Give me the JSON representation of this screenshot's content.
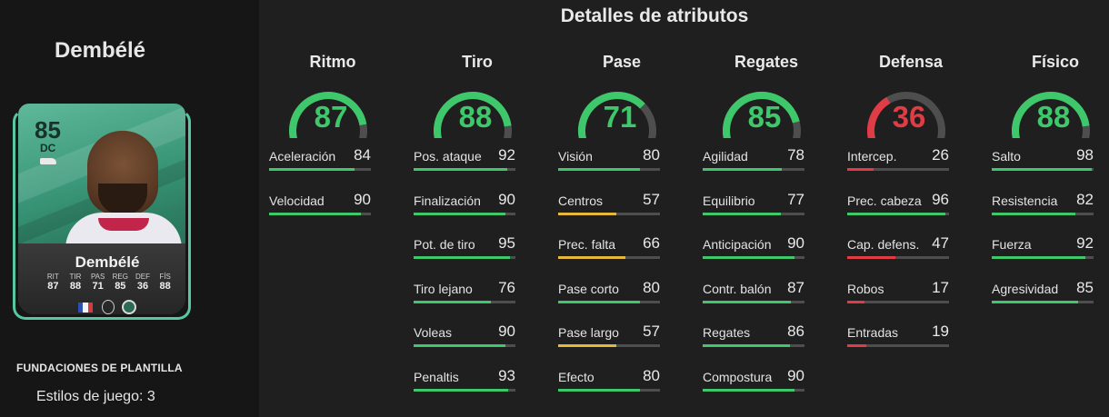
{
  "header": {
    "title": "Detalles de atributos"
  },
  "player": {
    "name": "Dembélé",
    "card": {
      "rating": "85",
      "position": "DC",
      "name": "Dembélé",
      "stats": [
        {
          "label": "RIT",
          "value": "87"
        },
        {
          "label": "TIR",
          "value": "88"
        },
        {
          "label": "PAS",
          "value": "71"
        },
        {
          "label": "REG",
          "value": "85"
        },
        {
          "label": "DEF",
          "value": "36"
        },
        {
          "label": "FÍS",
          "value": "88"
        }
      ],
      "accent_color": "#57c7a4"
    },
    "edition": "FUNDACIONES DE PLANTILLA",
    "play_styles": "Estilos de juego: 3"
  },
  "colors": {
    "high": "#3ec86b",
    "mid": "#e5b83b",
    "low": "#e03c46",
    "track": "#4e4e4e"
  },
  "categories": [
    {
      "name": "Ritmo",
      "value": "87",
      "rating": "high",
      "attributes": [
        {
          "name": "Aceleración",
          "value": "84",
          "rating": "high"
        },
        {
          "name": "Velocidad",
          "value": "90",
          "rating": "high"
        }
      ]
    },
    {
      "name": "Tiro",
      "value": "88",
      "rating": "high",
      "attributes": [
        {
          "name": "Pos. ataque",
          "value": "92",
          "rating": "high"
        },
        {
          "name": "Finalización",
          "value": "90",
          "rating": "high"
        },
        {
          "name": "Pot. de tiro",
          "value": "95",
          "rating": "high"
        },
        {
          "name": "Tiro lejano",
          "value": "76",
          "rating": "high"
        },
        {
          "name": "Voleas",
          "value": "90",
          "rating": "high"
        },
        {
          "name": "Penaltis",
          "value": "93",
          "rating": "high"
        }
      ]
    },
    {
      "name": "Pase",
      "value": "71",
      "rating": "high",
      "attributes": [
        {
          "name": "Visión",
          "value": "80",
          "rating": "high"
        },
        {
          "name": "Centros",
          "value": "57",
          "rating": "mid"
        },
        {
          "name": "Prec. falta",
          "value": "66",
          "rating": "mid"
        },
        {
          "name": "Pase corto",
          "value": "80",
          "rating": "high"
        },
        {
          "name": "Pase largo",
          "value": "57",
          "rating": "mid"
        },
        {
          "name": "Efecto",
          "value": "80",
          "rating": "high"
        }
      ]
    },
    {
      "name": "Regates",
      "value": "85",
      "rating": "high",
      "attributes": [
        {
          "name": "Agilidad",
          "value": "78",
          "rating": "high"
        },
        {
          "name": "Equilibrio",
          "value": "77",
          "rating": "high"
        },
        {
          "name": "Anticipación",
          "value": "90",
          "rating": "high"
        },
        {
          "name": "Contr. balón",
          "value": "87",
          "rating": "high"
        },
        {
          "name": "Regates",
          "value": "86",
          "rating": "high"
        },
        {
          "name": "Compostura",
          "value": "90",
          "rating": "high"
        }
      ]
    },
    {
      "name": "Defensa",
      "value": "36",
      "rating": "low",
      "attributes": [
        {
          "name": "Intercep.",
          "value": "26",
          "rating": "low"
        },
        {
          "name": "Prec. cabeza",
          "value": "96",
          "rating": "high"
        },
        {
          "name": "Cap. defens.",
          "value": "47",
          "rating": "low"
        },
        {
          "name": "Robos",
          "value": "17",
          "rating": "low"
        },
        {
          "name": "Entradas",
          "value": "19",
          "rating": "low"
        }
      ]
    },
    {
      "name": "Físico",
      "value": "88",
      "rating": "high",
      "attributes": [
        {
          "name": "Salto",
          "value": "98",
          "rating": "high"
        },
        {
          "name": "Resistencia",
          "value": "82",
          "rating": "high"
        },
        {
          "name": "Fuerza",
          "value": "92",
          "rating": "high"
        },
        {
          "name": "Agresividad",
          "value": "85",
          "rating": "high"
        }
      ]
    }
  ]
}
